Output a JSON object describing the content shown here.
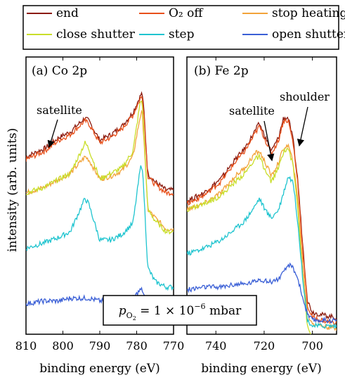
{
  "legend": [
    {
      "name": "end",
      "color": "#8b1a0e"
    },
    {
      "name": "O₂ off",
      "color": "#e8501a"
    },
    {
      "name": "stop heating",
      "color": "#f2a33a"
    },
    {
      "name": "close shutter",
      "color": "#c9de2a"
    },
    {
      "name": "step",
      "color": "#1fc4cf"
    },
    {
      "name": "open shutter",
      "color": "#3a5fd6"
    }
  ],
  "y_label": "intensity (arb. units)",
  "condition_label": "p_O2 = 1 × 10⁻⁶ mbar",
  "chart_data": [
    {
      "type": "line",
      "panel": "a",
      "title": "(a) Co 2p",
      "xlabel": "binding energy (eV)",
      "ylabel": "intensity (arb. units)",
      "xlim": [
        810,
        770
      ],
      "x_reversed": true,
      "xticks": [
        810,
        800,
        790,
        780,
        770
      ],
      "xtick_labels": [
        "810",
        "800",
        "790",
        "780",
        "770"
      ],
      "ylim": [
        0,
        1
      ],
      "yticks_shown": false,
      "annotations": [
        {
          "text": "satellite",
          "points_to_x": 801
        }
      ],
      "series": [
        {
          "name": "end",
          "color": "#8b1a0e",
          "x": [
            810,
            805,
            801,
            798,
            794,
            793,
            790,
            787,
            784,
            781,
            779,
            778.5,
            778,
            777,
            775,
            772,
            770
          ],
          "y": [
            0.64,
            0.67,
            0.71,
            0.73,
            0.78,
            0.77,
            0.7,
            0.72,
            0.75,
            0.8,
            0.86,
            0.87,
            0.8,
            0.58,
            0.55,
            0.52,
            0.52
          ]
        },
        {
          "name": "O₂ off",
          "color": "#e8501a",
          "x": [
            810,
            805,
            801,
            798,
            794,
            793,
            790,
            787,
            784,
            781,
            779,
            778.5,
            778,
            777,
            775,
            772,
            770
          ],
          "y": [
            0.63,
            0.66,
            0.7,
            0.72,
            0.77,
            0.76,
            0.69,
            0.71,
            0.74,
            0.79,
            0.85,
            0.86,
            0.79,
            0.57,
            0.54,
            0.51,
            0.51
          ]
        },
        {
          "name": "stop heating",
          "color": "#f2a33a",
          "x": [
            810,
            805,
            801,
            798,
            794,
            793,
            790,
            787,
            784,
            781,
            779,
            778.5,
            778,
            777,
            775,
            772,
            770
          ],
          "y": [
            0.51,
            0.53,
            0.56,
            0.58,
            0.64,
            0.63,
            0.56,
            0.57,
            0.59,
            0.64,
            0.79,
            0.8,
            0.7,
            0.45,
            0.42,
            0.38,
            0.38
          ]
        },
        {
          "name": "close shutter",
          "color": "#c9de2a",
          "x": [
            810,
            805,
            801,
            798,
            794,
            793,
            790,
            787,
            784,
            781,
            779,
            778.5,
            778,
            777,
            775,
            772,
            770
          ],
          "y": [
            0.51,
            0.53,
            0.56,
            0.58,
            0.69,
            0.67,
            0.56,
            0.58,
            0.6,
            0.66,
            0.84,
            0.84,
            0.72,
            0.45,
            0.41,
            0.37,
            0.37
          ]
        },
        {
          "name": "step",
          "color": "#1fc4cf",
          "x": [
            810,
            805,
            801,
            798,
            794,
            793,
            790,
            787,
            784,
            781,
            779,
            778.5,
            778,
            777,
            775,
            772,
            770
          ],
          "y": [
            0.31,
            0.33,
            0.35,
            0.37,
            0.49,
            0.47,
            0.34,
            0.34,
            0.36,
            0.4,
            0.6,
            0.61,
            0.5,
            0.24,
            0.19,
            0.17,
            0.17
          ]
        },
        {
          "name": "open shutter",
          "color": "#3a5fd6",
          "x": [
            810,
            805,
            801,
            798,
            794,
            793,
            790,
            787,
            784,
            781,
            779,
            778.5,
            778,
            777,
            775,
            772,
            770
          ],
          "y": [
            0.11,
            0.12,
            0.12,
            0.13,
            0.13,
            0.13,
            0.12,
            0.12,
            0.13,
            0.13,
            0.16,
            0.16,
            0.14,
            0.11,
            0.11,
            0.1,
            0.1
          ]
        }
      ]
    },
    {
      "type": "line",
      "panel": "b",
      "title": "(b) Fe 2p",
      "xlabel": "binding energy (eV)",
      "ylabel": "intensity (arb. units)",
      "xlim": [
        752,
        690
      ],
      "x_reversed": true,
      "xticks": [
        740,
        720,
        700
      ],
      "xtick_labels": [
        "740",
        "720",
        "700"
      ],
      "ylim": [
        0,
        1
      ],
      "yticks_shown": false,
      "annotations": [
        {
          "text": "satellite",
          "points_to_x": 718
        },
        {
          "text": "shoulder",
          "points_to_x": 707
        }
      ],
      "series": [
        {
          "name": "end",
          "color": "#8b1a0e",
          "x": [
            752,
            745,
            738,
            732,
            728,
            724,
            722,
            719,
            717,
            714,
            712,
            710,
            708,
            706,
            704,
            702,
            700,
            696,
            690
          ],
          "y": [
            0.48,
            0.51,
            0.56,
            0.63,
            0.67,
            0.73,
            0.76,
            0.7,
            0.66,
            0.71,
            0.78,
            0.78,
            0.7,
            0.55,
            0.32,
            0.12,
            0.08,
            0.07,
            0.06
          ]
        },
        {
          "name": "O₂ off",
          "color": "#e8501a",
          "x": [
            752,
            745,
            738,
            732,
            728,
            724,
            722,
            719,
            717,
            714,
            712,
            710,
            708,
            706,
            704,
            702,
            700,
            696,
            690
          ],
          "y": [
            0.47,
            0.5,
            0.55,
            0.62,
            0.66,
            0.72,
            0.75,
            0.69,
            0.65,
            0.7,
            0.77,
            0.77,
            0.69,
            0.54,
            0.3,
            0.1,
            0.06,
            0.05,
            0.04
          ]
        },
        {
          "name": "stop heating",
          "color": "#f2a33a",
          "x": [
            752,
            745,
            738,
            732,
            728,
            724,
            722,
            719,
            717,
            714,
            712,
            710,
            708,
            706,
            704,
            702,
            700,
            696,
            690
          ],
          "y": [
            0.45,
            0.47,
            0.51,
            0.57,
            0.6,
            0.65,
            0.66,
            0.61,
            0.57,
            0.62,
            0.67,
            0.68,
            0.62,
            0.48,
            0.25,
            0.07,
            0.04,
            0.03,
            0.02
          ]
        },
        {
          "name": "close shutter",
          "color": "#c9de2a",
          "x": [
            752,
            745,
            738,
            732,
            728,
            724,
            722,
            719,
            717,
            714,
            712,
            710,
            708,
            706,
            704,
            702,
            700,
            696,
            690
          ],
          "y": [
            0.45,
            0.47,
            0.5,
            0.55,
            0.58,
            0.63,
            0.64,
            0.58,
            0.55,
            0.6,
            0.66,
            0.67,
            0.61,
            0.45,
            0.21,
            0.02,
            -0.01,
            -0.02,
            -0.03
          ]
        },
        {
          "name": "step",
          "color": "#1fc4cf",
          "x": [
            752,
            745,
            738,
            732,
            728,
            724,
            722,
            719,
            717,
            714,
            712,
            710,
            708,
            706,
            704,
            702,
            700,
            696,
            690
          ],
          "y": [
            0.29,
            0.31,
            0.34,
            0.38,
            0.41,
            0.46,
            0.49,
            0.44,
            0.42,
            0.45,
            0.51,
            0.57,
            0.55,
            0.4,
            0.2,
            0.05,
            0.03,
            0.03,
            0.03
          ]
        },
        {
          "name": "open shutter",
          "color": "#3a5fd6",
          "x": [
            752,
            745,
            738,
            732,
            728,
            724,
            722,
            719,
            717,
            714,
            712,
            710,
            708,
            706,
            704,
            702,
            700,
            696,
            690
          ],
          "y": [
            0.16,
            0.17,
            0.17,
            0.18,
            0.18,
            0.19,
            0.2,
            0.19,
            0.19,
            0.2,
            0.22,
            0.25,
            0.24,
            0.2,
            0.13,
            0.07,
            0.05,
            0.05,
            0.05
          ]
        }
      ]
    }
  ]
}
